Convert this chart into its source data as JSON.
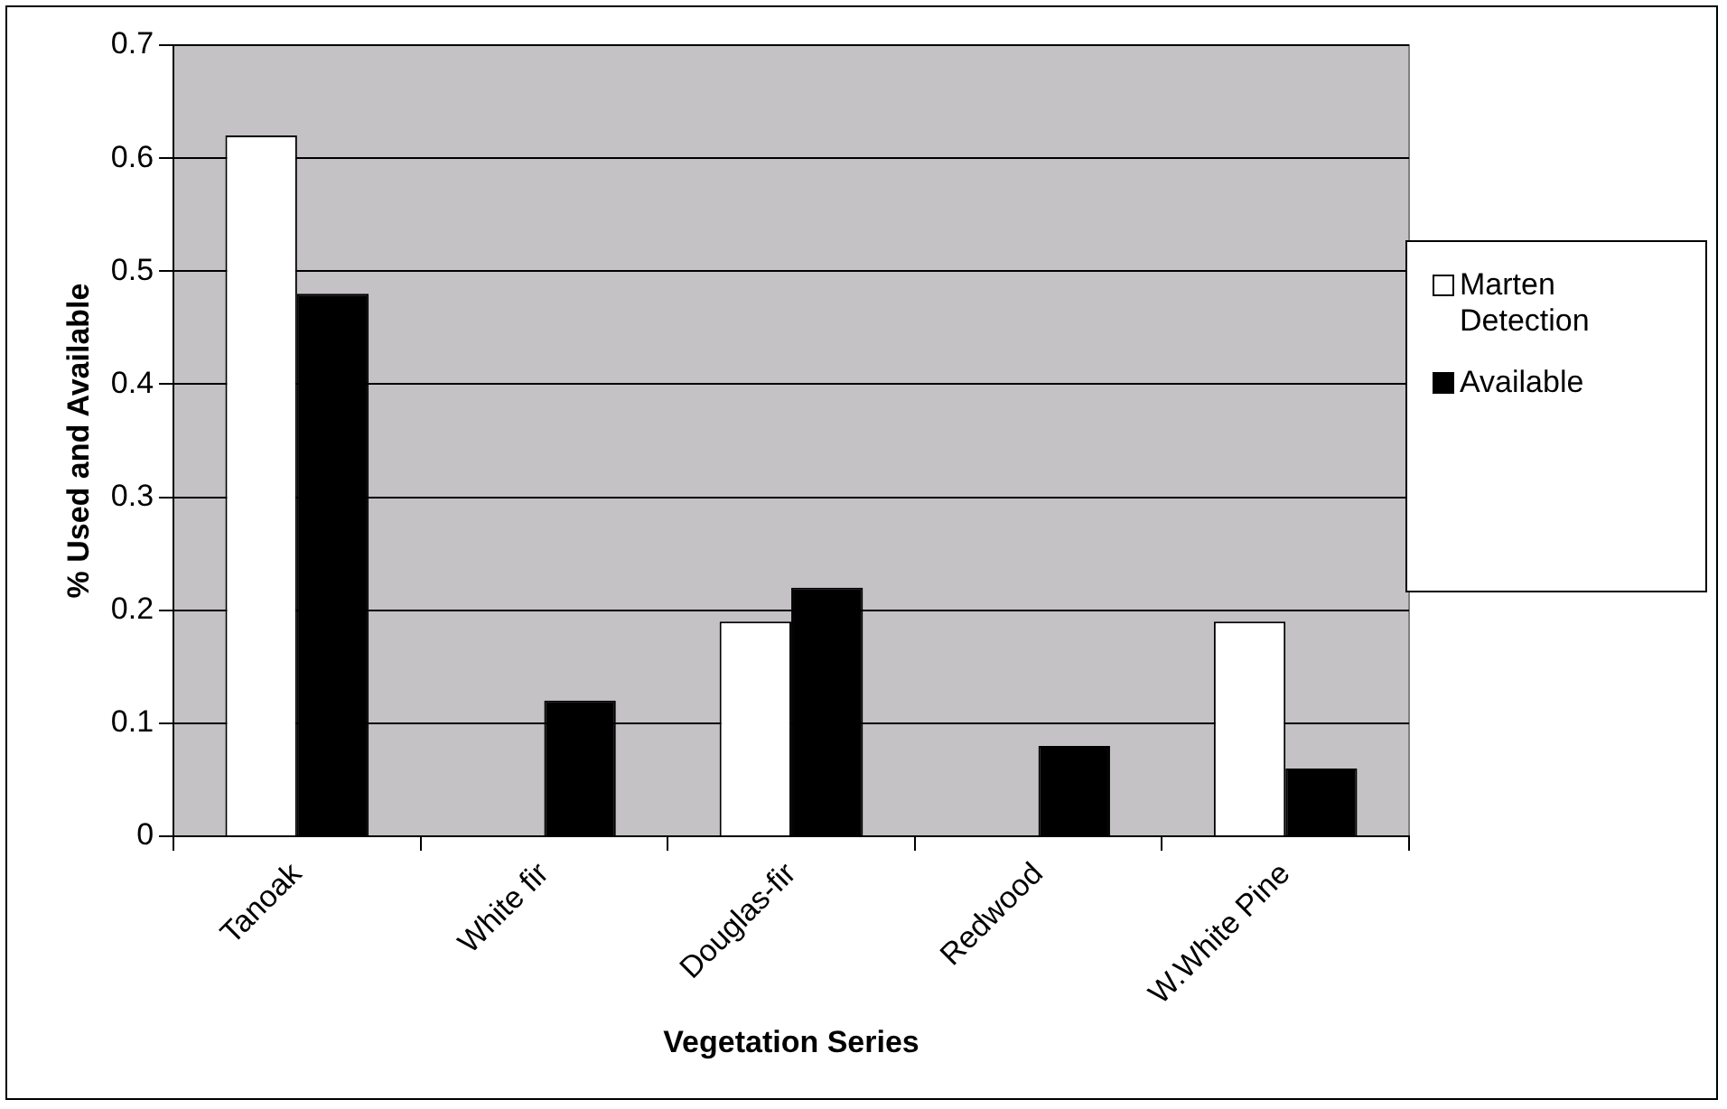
{
  "chart_data": {
    "type": "bar",
    "xlabel": "Vegetation Series",
    "ylabel": "% Used and Available",
    "categories": [
      "Tanoak",
      "White fir",
      "Douglas-fir",
      "Redwood",
      "W.White Pine"
    ],
    "series": [
      {
        "name": "Marten Detection",
        "color": "#ffffff",
        "values": [
          0.62,
          0,
          0.19,
          0,
          0.19
        ]
      },
      {
        "name": "Available",
        "color": "#000000",
        "values": [
          0.48,
          0.12,
          0.22,
          0.08,
          0.06
        ]
      }
    ],
    "ylim": [
      0,
      0.7
    ],
    "yticks": [
      0,
      0.1,
      0.2,
      0.3,
      0.4,
      0.5,
      0.6,
      0.7
    ],
    "grid": "y",
    "legend": "right"
  }
}
